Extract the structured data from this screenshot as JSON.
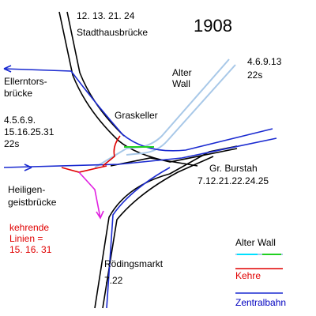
{
  "title": "1908",
  "labels": {
    "stadthausbruecke": [
      "12. 13. 21. 24",
      "Stadthausbrücke"
    ],
    "alter_wall": [
      "Alter",
      "Wall"
    ],
    "alter_wall_lines": [
      "4.6.9.13",
      "22s"
    ],
    "ellerntorsbruecke": [
      "Ellerntors-",
      "brücke"
    ],
    "graskeller": "Graskeller",
    "west_lines": [
      "4.5.6.9.",
      "15.16.25.31",
      "22s"
    ],
    "heiligengeistbruecke": [
      "Heiligen-",
      "geistbrücke"
    ],
    "gr_burstah": [
      "Gr. Burstah",
      "7.12.21.22.24.25"
    ],
    "kehrende_linien": [
      "kehrende",
      "Linien =",
      "15. 16. 31"
    ],
    "roedingsmarkt": [
      "Rödingsmarkt",
      "7.22"
    ]
  },
  "legend": {
    "alter_wall": "Alter Wall",
    "kehre": "Kehre",
    "zentralbahn": "Zentralbahn"
  }
}
